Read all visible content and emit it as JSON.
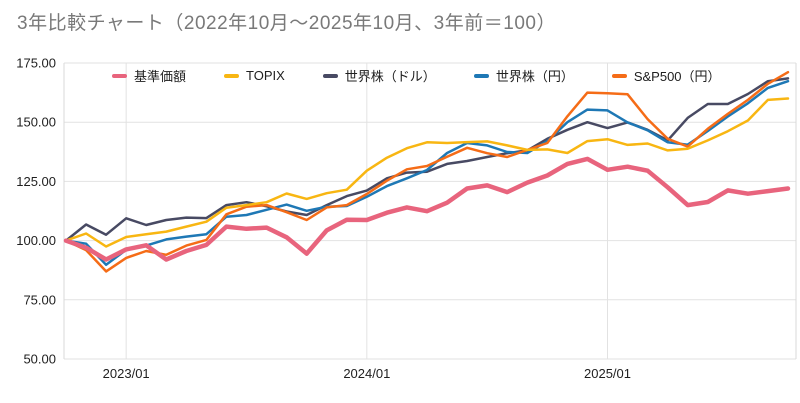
{
  "title": "3年比較チャート（2022年10月～2025年10月、3年前＝100）",
  "legend": [
    {
      "label": "基準価額",
      "color": "#e8647d"
    },
    {
      "label": "TOPIX",
      "color": "#f8b612"
    },
    {
      "label": "世界株（ドル）",
      "color": "#484a63"
    },
    {
      "label": "世界株（円）",
      "color": "#1e78b5"
    },
    {
      "label": "S&P500（円）",
      "color": "#f56c17"
    }
  ],
  "axes": {
    "y_ticks": [
      "175.00",
      "150.00",
      "125.00",
      "100.00",
      "75.00",
      "50.00"
    ],
    "x_ticks": [
      {
        "label": "2023/01",
        "month_index": 3
      },
      {
        "label": "2024/01",
        "month_index": 15
      },
      {
        "label": "2025/01",
        "month_index": 27
      }
    ]
  },
  "colors": {
    "gridline": "#e2e2e2",
    "axis_border": "#d9d9d9",
    "title_text": "#797979",
    "tick_text": "#1f1f1f"
  },
  "chart_data": {
    "type": "line",
    "title": "3年比較チャート（2022年10月～2025年10月、3年前＝100）",
    "ylim": [
      50,
      175
    ],
    "grid": true,
    "legend_position": "top-inside",
    "x_labels": [
      "2022/10",
      "2022/11",
      "2022/12",
      "2023/01",
      "2023/02",
      "2023/03",
      "2023/04",
      "2023/05",
      "2023/06",
      "2023/07",
      "2023/08",
      "2023/09",
      "2023/10",
      "2023/11",
      "2023/12",
      "2024/01",
      "2024/02",
      "2024/03",
      "2024/04",
      "2024/05",
      "2024/06",
      "2024/07",
      "2024/08",
      "2024/09",
      "2024/10",
      "2024/11",
      "2024/12",
      "2025/01",
      "2025/02",
      "2025/03",
      "2025/04",
      "2025/05",
      "2025/06",
      "2025/07",
      "2025/08",
      "2025/09",
      "2025/10"
    ],
    "series": [
      {
        "name": "世界株（ドル）",
        "color": "#484a63",
        "width": 2.5,
        "values": [
          100,
          106.8,
          102.5,
          109.4,
          106.6,
          108.7,
          109.7,
          109.5,
          115,
          116.2,
          114.5,
          112.3,
          110.8,
          115,
          118.8,
          121.1,
          126.3,
          128.7,
          129.1,
          132.4,
          133.6,
          135.3,
          136.9,
          138.1,
          143,
          146.8,
          150,
          147.5,
          149.9,
          146.8,
          142.3,
          151.8,
          157.7,
          157.7,
          161.9,
          167.3,
          168.5
        ]
      },
      {
        "name": "世界株（円）",
        "color": "#1e78b5",
        "width": 2.5,
        "values": [
          100,
          98.7,
          89.8,
          96.1,
          97.9,
          100.5,
          101.7,
          102.7,
          110.1,
          110.8,
          113,
          115.2,
          112.6,
          114.3,
          114.6,
          118.5,
          123,
          126.3,
          129.8,
          137,
          141.2,
          140.2,
          137.4,
          137,
          142,
          150,
          155.3,
          155,
          149.9,
          146.6,
          141.5,
          140.5,
          146.3,
          152.4,
          158,
          164.5,
          167.3
        ]
      },
      {
        "name": "S&P500（円）",
        "color": "#f56c17",
        "width": 2.5,
        "values": [
          100,
          96,
          87,
          92.7,
          95.6,
          94,
          97.9,
          100.3,
          111.1,
          114.3,
          115,
          112,
          108.7,
          114,
          115,
          119.7,
          125.3,
          130.1,
          131.5,
          135.4,
          139.2,
          136.9,
          135.3,
          138.3,
          141.2,
          152.5,
          162.5,
          162.2,
          161.8,
          151.3,
          143,
          139.7,
          147.2,
          153.5,
          159.4,
          166.2,
          171.1
        ]
      },
      {
        "name": "TOPIX",
        "color": "#f8b612",
        "width": 2.5,
        "values": [
          100,
          103,
          97.5,
          101.5,
          102.7,
          103.8,
          105.9,
          108,
          113.9,
          115,
          116.2,
          119.9,
          117.6,
          120,
          121.5,
          129.5,
          135,
          139,
          141.5,
          141.2,
          141.6,
          141.9,
          140.2,
          138.3,
          138.5,
          137,
          142,
          142.8,
          140.4,
          141,
          138.1,
          138.8,
          142.3,
          146.2,
          150.7,
          159.4,
          160
        ]
      },
      {
        "name": "基準価額",
        "color": "#e8647d",
        "width": 4.5,
        "values": [
          100,
          97,
          92,
          96.3,
          98,
          92,
          95.6,
          98.2,
          105.9,
          105,
          105.5,
          101.4,
          94.5,
          104.3,
          108.8,
          108.7,
          111.8,
          114,
          112.4,
          116,
          122,
          123.3,
          120.5,
          124.5,
          127.5,
          132.4,
          134.5,
          129.9,
          131.2,
          129.5,
          122.5,
          115,
          116.3,
          121.2,
          119.8,
          120.9,
          122
        ]
      }
    ]
  }
}
